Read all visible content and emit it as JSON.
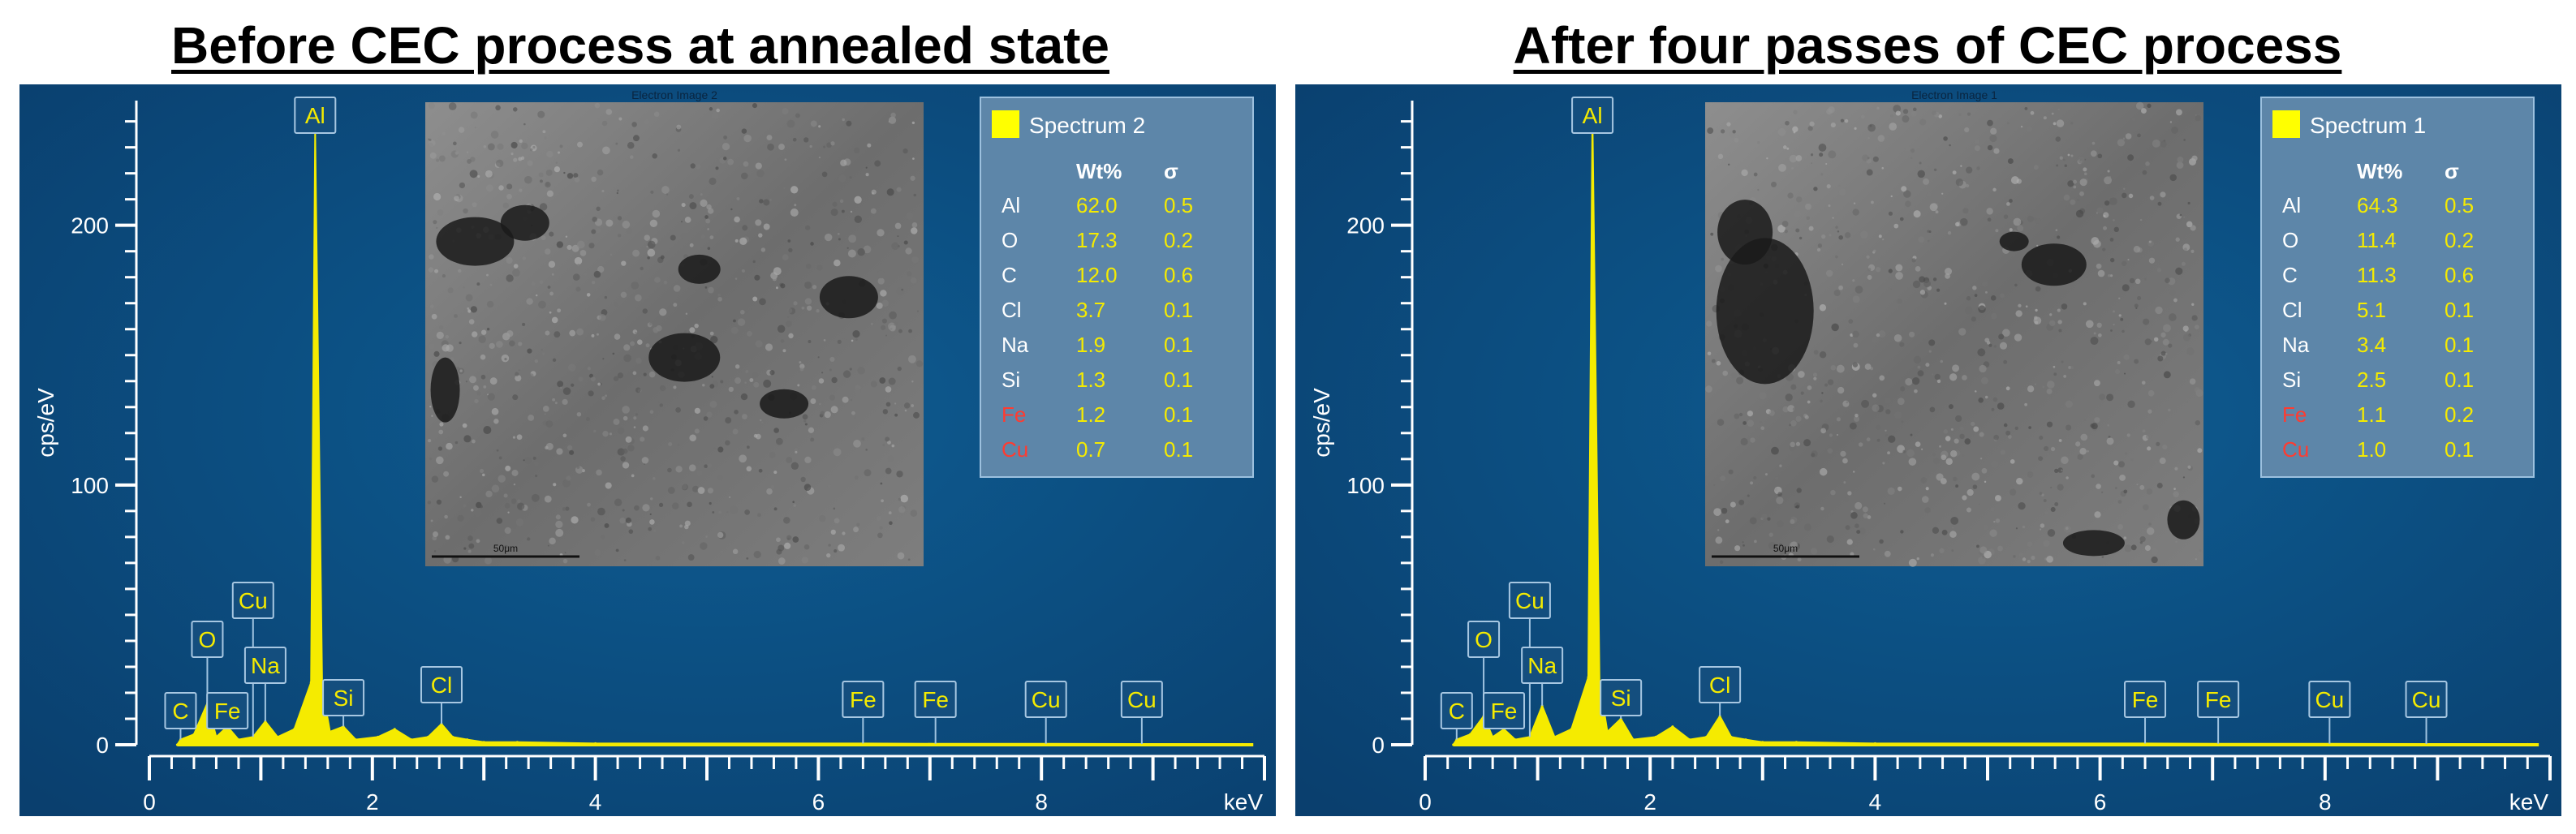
{
  "figure": {
    "left_title": "Before CEC process at annealed state",
    "right_title": "After four passes of CEC process"
  },
  "chart_data": [
    {
      "type": "line",
      "title": "Before CEC process at annealed state",
      "xlabel": "keV",
      "ylabel": "cps/eV",
      "xlim": [
        0,
        10
      ],
      "ylim": [
        0,
        248
      ],
      "xticks": [
        "0",
        "2",
        "4",
        "6",
        "8"
      ],
      "yticks": [
        "0",
        "100",
        "200"
      ],
      "grid": false,
      "line_color": "#f5eb00",
      "x": [
        0.25,
        0.28,
        0.4,
        0.52,
        0.6,
        0.7,
        0.8,
        0.93,
        1.04,
        1.15,
        1.3,
        1.45,
        1.487,
        1.55,
        1.62,
        1.74,
        1.85,
        2.05,
        2.2,
        2.35,
        2.5,
        2.62,
        2.72,
        2.85,
        3.0,
        3.3,
        4.0,
        6.4,
        7.05,
        8.04,
        8.9,
        9.8
      ],
      "y": [
        0,
        2,
        4,
        16,
        3,
        7,
        2,
        3,
        9,
        3,
        6,
        24,
        236,
        22,
        5,
        7,
        2,
        3,
        6,
        2,
        3,
        8,
        3,
        2,
        1,
        1,
        0.5,
        0.5,
        0.4,
        0.4,
        0.3,
        0.2
      ],
      "peak_labels": [
        {
          "label": "C",
          "kev": 0.28
        },
        {
          "label": "O",
          "kev": 0.52
        },
        {
          "label": "Cu",
          "kev": 0.93
        },
        {
          "label": "Fe",
          "kev": 0.7
        },
        {
          "label": "Na",
          "kev": 1.04
        },
        {
          "label": "Al",
          "kev": 1.487
        },
        {
          "label": "Si",
          "kev": 1.74
        },
        {
          "label": "Cl",
          "kev": 2.62
        },
        {
          "label": "Fe",
          "kev": 6.4
        },
        {
          "label": "Fe",
          "kev": 7.05
        },
        {
          "label": "Cu",
          "kev": 8.04
        },
        {
          "label": "Cu",
          "kev": 8.9
        }
      ],
      "inset_image_caption": "Electron Image 2",
      "scale_bar": "50μm",
      "spectrum_table": {
        "name": "Spectrum 2",
        "swatch_color": "#ffff00",
        "headers": [
          "",
          "Wt%",
          "σ"
        ],
        "rows": [
          {
            "el": "Al",
            "wt": "62.0",
            "sigma": "0.5",
            "el_color": "#ffffff"
          },
          {
            "el": "O",
            "wt": "17.3",
            "sigma": "0.2",
            "el_color": "#ffffff"
          },
          {
            "el": "C",
            "wt": "12.0",
            "sigma": "0.6",
            "el_color": "#ffffff"
          },
          {
            "el": "Cl",
            "wt": "3.7",
            "sigma": "0.1",
            "el_color": "#ffffff"
          },
          {
            "el": "Na",
            "wt": "1.9",
            "sigma": "0.1",
            "el_color": "#ffffff"
          },
          {
            "el": "Si",
            "wt": "1.3",
            "sigma": "0.1",
            "el_color": "#ffffff"
          },
          {
            "el": "Fe",
            "wt": "1.2",
            "sigma": "0.1",
            "el_color": "#ff3b30"
          },
          {
            "el": "Cu",
            "wt": "0.7",
            "sigma": "0.1",
            "el_color": "#ff3b30"
          }
        ]
      }
    },
    {
      "type": "line",
      "title": "After four passes of CEC process",
      "xlabel": "keV",
      "ylabel": "cps/eV",
      "xlim": [
        0,
        10
      ],
      "ylim": [
        0,
        248
      ],
      "xticks": [
        "0",
        "2",
        "4",
        "6",
        "8"
      ],
      "yticks": [
        "0",
        "100",
        "200"
      ],
      "grid": false,
      "line_color": "#f5eb00",
      "x": [
        0.25,
        0.28,
        0.4,
        0.52,
        0.6,
        0.7,
        0.8,
        0.93,
        1.04,
        1.15,
        1.3,
        1.45,
        1.487,
        1.55,
        1.62,
        1.74,
        1.85,
        2.05,
        2.2,
        2.35,
        2.5,
        2.62,
        2.72,
        2.85,
        3.0,
        3.3,
        4.0,
        6.4,
        7.05,
        8.04,
        8.9,
        9.8
      ],
      "y": [
        0,
        2,
        4,
        11,
        3,
        6,
        2,
        3,
        15,
        3,
        6,
        26,
        243,
        24,
        5,
        10,
        2,
        3,
        7,
        2,
        3,
        11,
        3,
        2,
        1,
        1,
        0.5,
        0.5,
        0.4,
        0.4,
        0.3,
        0.2
      ],
      "peak_labels": [
        {
          "label": "C",
          "kev": 0.28
        },
        {
          "label": "O",
          "kev": 0.52
        },
        {
          "label": "Fe",
          "kev": 0.7
        },
        {
          "label": "Cu",
          "kev": 0.93
        },
        {
          "label": "Na",
          "kev": 1.04
        },
        {
          "label": "Al",
          "kev": 1.487
        },
        {
          "label": "Si",
          "kev": 1.74
        },
        {
          "label": "Cl",
          "kev": 2.62
        },
        {
          "label": "Fe",
          "kev": 6.4
        },
        {
          "label": "Fe",
          "kev": 7.05
        },
        {
          "label": "Cu",
          "kev": 8.04
        },
        {
          "label": "Cu",
          "kev": 8.9
        }
      ],
      "inset_image_caption": "Electron Image 1",
      "scale_bar": "50μm",
      "spectrum_table": {
        "name": "Spectrum 1",
        "swatch_color": "#ffff00",
        "headers": [
          "",
          "Wt%",
          "σ"
        ],
        "rows": [
          {
            "el": "Al",
            "wt": "64.3",
            "sigma": "0.5",
            "el_color": "#ffffff"
          },
          {
            "el": "O",
            "wt": "11.4",
            "sigma": "0.2",
            "el_color": "#ffffff"
          },
          {
            "el": "C",
            "wt": "11.3",
            "sigma": "0.6",
            "el_color": "#ffffff"
          },
          {
            "el": "Cl",
            "wt": "5.1",
            "sigma": "0.1",
            "el_color": "#ffffff"
          },
          {
            "el": "Na",
            "wt": "3.4",
            "sigma": "0.1",
            "el_color": "#ffffff"
          },
          {
            "el": "Si",
            "wt": "2.5",
            "sigma": "0.1",
            "el_color": "#ffffff"
          },
          {
            "el": "Fe",
            "wt": "1.1",
            "sigma": "0.2",
            "el_color": "#ff3b30"
          },
          {
            "el": "Cu",
            "wt": "1.0",
            "sigma": "0.1",
            "el_color": "#ff3b30"
          }
        ]
      }
    }
  ]
}
